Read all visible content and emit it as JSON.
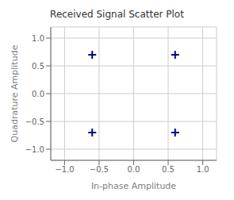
{
  "chart_data": {
    "type": "scatter",
    "title": "Received Signal Scatter Plot",
    "xlabel": "In-phase Amplitude",
    "ylabel": "Quadrature Amplitude",
    "x": [
      -0.6,
      0.6,
      -0.6,
      0.6
    ],
    "values": [
      0.7,
      0.7,
      -0.7,
      -0.7
    ],
    "color": "#00008B",
    "marker": "plus",
    "xlim": [
      -1.2,
      1.2
    ],
    "ylim": [
      -1.2,
      1.2
    ],
    "xticks": [
      {
        "value": -1,
        "label": "−1.0"
      },
      {
        "value": -0.5,
        "label": "−0.5"
      },
      {
        "value": 0,
        "label": "0.0"
      },
      {
        "value": 0.5,
        "label": "0.5"
      },
      {
        "value": 1,
        "label": "1.0"
      }
    ],
    "yticks": [
      {
        "value": -1,
        "label": "−1.0"
      },
      {
        "value": -0.5,
        "label": "−0.5"
      },
      {
        "value": 0,
        "label": "0.0"
      },
      {
        "value": 0.5,
        "label": "0.5"
      },
      {
        "value": 1,
        "label": "1.0"
      }
    ],
    "grid": true
  }
}
